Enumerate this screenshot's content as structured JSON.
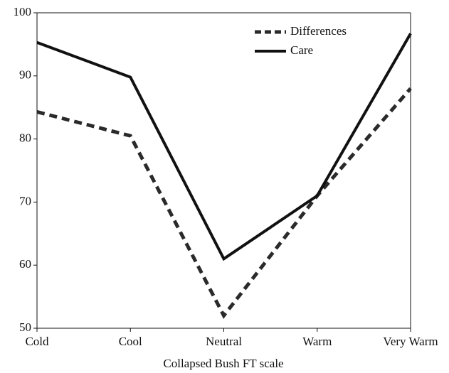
{
  "chart_data": {
    "type": "line",
    "x_label": "Collapsed Bush FT scale",
    "categories": [
      "Cold",
      "Cool",
      "Neutral",
      "Warm",
      "Very Warm"
    ],
    "series": [
      {
        "name": "Differences",
        "color": "#2a2a2a",
        "dash": true,
        "values": [
          84.3,
          80.5,
          52,
          71,
          88
        ]
      },
      {
        "name": "Care",
        "color": "#111111",
        "dash": false,
        "values": [
          95.3,
          89.8,
          61,
          71,
          96.7
        ]
      }
    ],
    "ylim": [
      50,
      100
    ],
    "yticks": [
      50,
      60,
      70,
      80,
      90,
      100
    ],
    "legend": "upper right",
    "frame": true
  }
}
